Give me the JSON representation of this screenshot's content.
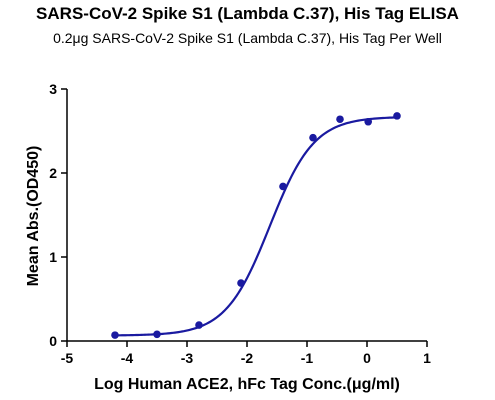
{
  "chart_data": {
    "type": "scatter",
    "title": "SARS-CoV-2 Spike S1 (Lambda C.37), His Tag ELISA",
    "subtitle": "0.2μg SARS-CoV-2 Spike S1 (Lambda C.37), His Tag Per Well",
    "xlabel": "Log Human ACE2, hFc Tag Conc.(μg/ml)",
    "ylabel": "Mean Abs.(OD450)",
    "xlim": [
      -5,
      1
    ],
    "ylim": [
      0,
      3
    ],
    "xticks": [
      -5,
      -4,
      -3,
      -2,
      -1,
      0,
      1
    ],
    "yticks": [
      0,
      1,
      2,
      3
    ],
    "grid": false,
    "colors": {
      "series": "#1a1aa0",
      "axis": "#000000"
    },
    "series": [
      {
        "x": [
          -4.2,
          -3.5,
          -2.8,
          -2.1,
          -1.4,
          -0.9,
          -0.45,
          0.02,
          0.5
        ],
        "y": [
          0.07,
          0.08,
          0.19,
          0.69,
          1.84,
          2.42,
          2.64,
          2.61,
          2.68
        ]
      }
    ],
    "fit": {
      "bottom": 0.065,
      "top": 2.67,
      "logEC50": -1.62,
      "hillslope": 1.18
    }
  }
}
